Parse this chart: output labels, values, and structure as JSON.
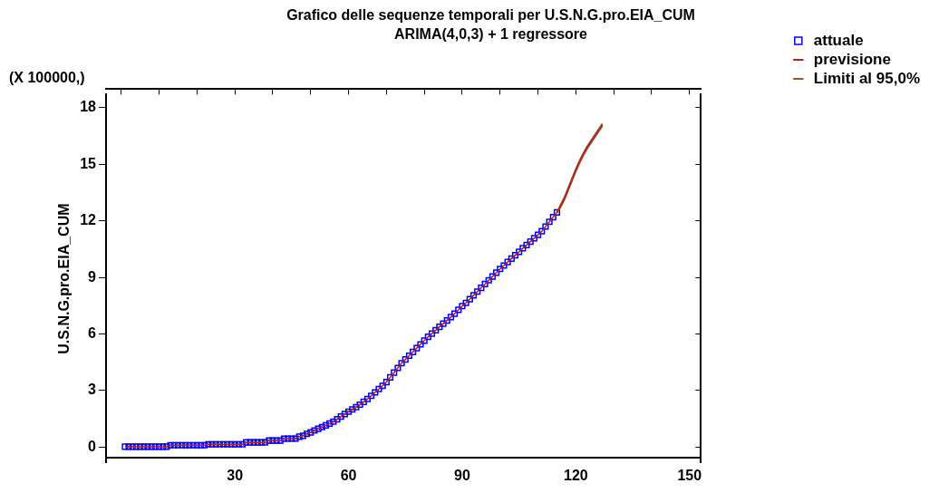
{
  "chart_data": {
    "type": "line",
    "title": "Grafico delle sequenze temporali per U.S.N.G.pro.EIA_CUM",
    "subtitle": "ARIMA(4,0,3) + 1 regressore",
    "ylabel": "U.S.N.G.pro.EIA_CUM",
    "annotations": [
      "(X 100000,)"
    ],
    "x": [
      1,
      2,
      3,
      4,
      5,
      6,
      7,
      8,
      9,
      10,
      11,
      12,
      13,
      14,
      15,
      16,
      17,
      18,
      19,
      20,
      21,
      22,
      23,
      24,
      25,
      26,
      27,
      28,
      29,
      30,
      31,
      32,
      33,
      34,
      35,
      36,
      37,
      38,
      39,
      40,
      41,
      42,
      43,
      44,
      45,
      46,
      47,
      48,
      49,
      50,
      51,
      52,
      53,
      54,
      55,
      56,
      57,
      58,
      59,
      60,
      61,
      62,
      63,
      64,
      65,
      66,
      67,
      68,
      69,
      70,
      71,
      72,
      73,
      74,
      75,
      76,
      77,
      78,
      79,
      80,
      81,
      82,
      83,
      84,
      85,
      86,
      87,
      88,
      89,
      90,
      91,
      92,
      93,
      94,
      95,
      96,
      97,
      98,
      99,
      100,
      101,
      102,
      103,
      104,
      105,
      106,
      107,
      108,
      109,
      110,
      111,
      112,
      113,
      114,
      115,
      116,
      117,
      118,
      119,
      120,
      121,
      122,
      123,
      124,
      125,
      126,
      127
    ],
    "series": [
      {
        "name": "attuale",
        "type": "scatter",
        "marker": "square",
        "color": "#0000ff",
        "values": [
          0.02,
          0.02,
          0.02,
          0.02,
          0.02,
          0.02,
          0.02,
          0.02,
          0.02,
          0.02,
          0.02,
          0.02,
          0.1,
          0.1,
          0.1,
          0.1,
          0.1,
          0.1,
          0.1,
          0.1,
          0.1,
          0.1,
          0.15,
          0.15,
          0.15,
          0.15,
          0.15,
          0.15,
          0.15,
          0.15,
          0.15,
          0.15,
          0.25,
          0.25,
          0.25,
          0.25,
          0.25,
          0.25,
          0.35,
          0.35,
          0.35,
          0.35,
          0.45,
          0.45,
          0.45,
          0.45,
          0.55,
          0.6,
          0.7,
          0.78,
          0.88,
          0.97,
          1.06,
          1.15,
          1.25,
          1.35,
          1.48,
          1.62,
          1.75,
          1.88,
          2.0,
          2.12,
          2.25,
          2.4,
          2.55,
          2.72,
          2.9,
          3.08,
          3.25,
          3.45,
          3.7,
          3.95,
          4.2,
          4.45,
          4.65,
          4.85,
          5.05,
          5.25,
          5.45,
          5.65,
          5.85,
          6.02,
          6.2,
          6.38,
          6.55,
          6.72,
          6.9,
          7.08,
          7.28,
          7.48,
          7.65,
          7.85,
          8.05,
          8.25,
          8.45,
          8.65,
          8.85,
          9.05,
          9.25,
          9.45,
          9.63,
          9.82,
          10.0,
          10.18,
          10.36,
          10.55,
          10.72,
          10.9,
          11.08,
          11.26,
          11.45,
          11.7,
          11.95,
          12.2,
          12.45,
          null,
          null,
          null,
          null,
          null,
          null,
          null,
          null,
          null,
          null,
          null,
          null
        ]
      },
      {
        "name": "previsione",
        "marker": "none",
        "color": "#b22222",
        "values": [
          0.02,
          0.02,
          0.02,
          0.02,
          0.02,
          0.02,
          0.02,
          0.02,
          0.02,
          0.02,
          0.02,
          0.02,
          0.1,
          0.1,
          0.1,
          0.1,
          0.1,
          0.1,
          0.1,
          0.1,
          0.1,
          0.1,
          0.15,
          0.15,
          0.15,
          0.15,
          0.15,
          0.15,
          0.15,
          0.15,
          0.15,
          0.15,
          0.25,
          0.25,
          0.25,
          0.25,
          0.25,
          0.25,
          0.35,
          0.35,
          0.35,
          0.35,
          0.45,
          0.45,
          0.45,
          0.45,
          0.55,
          0.6,
          0.7,
          0.78,
          0.88,
          0.97,
          1.06,
          1.15,
          1.25,
          1.35,
          1.48,
          1.62,
          1.75,
          1.88,
          2.0,
          2.12,
          2.25,
          2.4,
          2.55,
          2.72,
          2.9,
          3.08,
          3.25,
          3.45,
          3.7,
          3.95,
          4.2,
          4.45,
          4.65,
          4.85,
          5.05,
          5.25,
          5.45,
          5.65,
          5.85,
          6.02,
          6.2,
          6.38,
          6.55,
          6.72,
          6.9,
          7.08,
          7.28,
          7.48,
          7.65,
          7.85,
          8.05,
          8.25,
          8.45,
          8.65,
          8.85,
          9.05,
          9.25,
          9.45,
          9.63,
          9.82,
          10.0,
          10.18,
          10.36,
          10.55,
          10.72,
          10.9,
          11.08,
          11.26,
          11.45,
          11.7,
          11.95,
          12.2,
          12.45,
          12.8,
          13.2,
          13.7,
          14.2,
          14.7,
          15.15,
          15.55,
          15.9,
          16.2,
          16.5,
          16.8,
          17.1
        ]
      },
      {
        "name": "Limiti al 95,0%",
        "type": "line",
        "marker": "none",
        "color": "#a0522d",
        "x": [
          115,
          116,
          117,
          118,
          119,
          120,
          121,
          122,
          123,
          124,
          125,
          126,
          127
        ],
        "values": [
          12.45,
          12.85,
          13.25,
          13.75,
          14.25,
          14.75,
          15.2,
          15.6,
          15.95,
          16.25,
          16.55,
          16.85,
          17.15
        ]
      },
      {
        "type": "line",
        "marker": "none",
        "color": "#a0522d",
        "x": [
          115,
          116,
          117,
          118,
          119,
          120,
          121,
          122,
          123,
          124,
          125,
          126,
          127
        ],
        "values": [
          12.45,
          12.75,
          13.15,
          13.65,
          14.15,
          14.65,
          15.1,
          15.5,
          15.85,
          16.15,
          16.45,
          16.75,
          17.05
        ]
      }
    ],
    "xlim": [
      -4,
      153
    ],
    "xticks": [
      {
        "value": 0,
        "label": null
      },
      {
        "value": 10,
        "label": null
      },
      {
        "value": 20,
        "label": null
      },
      30,
      {
        "value": 40,
        "label": null
      },
      {
        "value": 50,
        "label": null
      },
      60,
      {
        "value": 70,
        "label": null
      },
      {
        "value": 80,
        "label": null
      },
      90,
      {
        "value": 100,
        "label": null
      },
      {
        "value": 110,
        "label": null
      },
      120,
      {
        "value": 130,
        "label": null
      },
      {
        "value": 140,
        "label": null
      },
      150
    ],
    "ylim": [
      -0.84,
      18.7
    ],
    "yticks": [
      0,
      3,
      6,
      9,
      12,
      15,
      18
    ],
    "legend": "right",
    "line_style": "solid"
  }
}
